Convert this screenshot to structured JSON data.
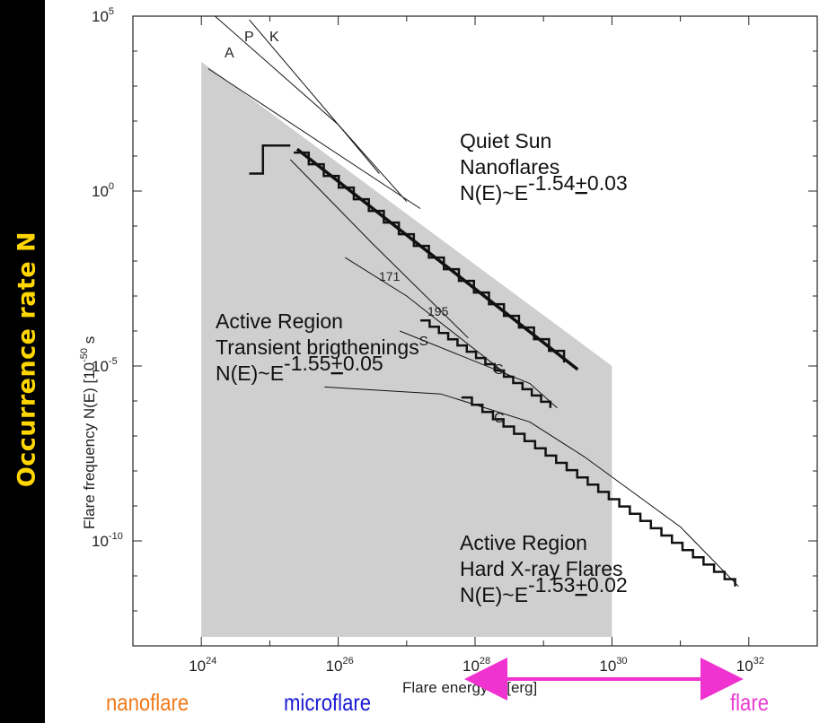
{
  "side_label": "Occurrence rate N",
  "categories": {
    "nanoflare": {
      "label": "nanoflare",
      "color": "#f07a1a"
    },
    "microflare": {
      "label": "microflare",
      "color": "#1a1ad4"
    },
    "flare": {
      "label": "flare",
      "color": "#e83ccf"
    }
  },
  "arrow_color": "#f032d0",
  "chart_data": {
    "type": "line",
    "xlabel": "Flare energy  E [erg]",
    "ylabel": "Flare frequency  N(E) [10",
    "ylabel_exp": "-50",
    "ylabel_units": " s",
    "x_scale": "log",
    "y_scale": "log",
    "xlim": [
      1e+23,
      1e+33
    ],
    "ylim": [
      1e-13,
      100000.0
    ],
    "x_ticks": [
      {
        "base": "10",
        "exp": "24",
        "value": 24
      },
      {
        "base": "10",
        "exp": "26",
        "value": 26
      },
      {
        "base": "10",
        "exp": "28",
        "value": 28
      },
      {
        "base": "10",
        "exp": "30",
        "value": 30
      },
      {
        "base": "10",
        "exp": "32",
        "value": 32
      }
    ],
    "y_ticks": [
      {
        "base": "10",
        "exp": "5",
        "value": 5
      },
      {
        "base": "10",
        "exp": "0",
        "value": 0
      },
      {
        "base": "10",
        "exp": "-5",
        "value": -5
      },
      {
        "base": "10",
        "exp": "-10",
        "value": -10
      }
    ],
    "shaded_region": {
      "x_log": [
        24,
        30
      ],
      "y_log_top_left": 3.7,
      "y_log_top_right": -5,
      "color": "#cfcfcf"
    },
    "series": [
      {
        "name": "A",
        "x_log": [
          24.1,
          27.2
        ],
        "y_log": [
          3.5,
          -0.5
        ],
        "style": "thin"
      },
      {
        "name": "P",
        "x_log": [
          24.2,
          26.0,
          26.6
        ],
        "y_log": [
          5.0,
          1.9,
          0.5
        ],
        "style": "thin"
      },
      {
        "name": "K",
        "x_log": [
          24.7,
          26.0,
          27.0
        ],
        "y_log": [
          4.9,
          1.9,
          -0.3
        ],
        "style": "thin"
      },
      {
        "name": "171",
        "x_log": [
          25.3,
          26.5,
          27.9
        ],
        "y_log": [
          0.9,
          -1.5,
          -4.2
        ],
        "style": "thin"
      },
      {
        "name": "195",
        "x_log": [
          26.1,
          27.0,
          28.5
        ],
        "y_log": [
          -1.9,
          -3.0,
          -5.3
        ],
        "style": "thin"
      },
      {
        "name": "S",
        "x_log": [
          26.9,
          28.8,
          29.2
        ],
        "y_log": [
          -4.0,
          -5.5,
          -6.2
        ],
        "style": "thin"
      },
      {
        "name": "C",
        "x_log": [
          25.8,
          27.5,
          28.8,
          29.6,
          31.0,
          31.85
        ],
        "y_log": [
          -5.6,
          -5.8,
          -6.6,
          -7.6,
          -9.6,
          -11.3
        ],
        "style": "thin"
      },
      {
        "name": "",
        "x_log": [
          25.4,
          29.5
        ],
        "y_log": [
          1.2,
          -5.1
        ],
        "style": "thick"
      }
    ],
    "annotations": [
      {
        "lines": [
          "Quiet Sun",
          "Nanoflares"
        ],
        "formula": "N(E)~E",
        "exponent": "-1.54",
        "pm": "0.03"
      },
      {
        "lines": [
          "Active Region",
          "Transient brigthenings"
        ],
        "formula": "N(E)~E",
        "exponent": "-1.55",
        "pm": "0.05",
        "sup_prefix": "S"
      },
      {
        "lines": [
          "Active Region",
          "Hard X-ray Flares"
        ],
        "formula": "N(E)~E",
        "exponent": "-1.53",
        "pm": "0.02"
      }
    ],
    "arrow": {
      "x_from_log": 28,
      "x_to_log": 32
    },
    "grid": false,
    "legend": "none"
  }
}
